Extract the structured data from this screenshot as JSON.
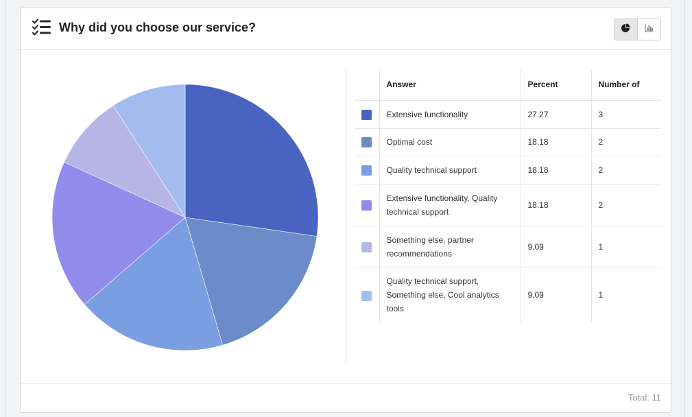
{
  "header": {
    "title": "Why did you choose our service?",
    "icon": "checklist-icon"
  },
  "view_toggle": {
    "options": [
      {
        "name": "pie-chart-icon",
        "active": true
      },
      {
        "name": "bar-chart-icon",
        "active": false
      }
    ]
  },
  "table": {
    "headers": {
      "answer": "Answer",
      "percent": "Percent",
      "number": "Number of"
    }
  },
  "footer": {
    "total": "Total: 11"
  },
  "chart_data": {
    "type": "pie",
    "title": "",
    "slices": [
      {
        "label": "Extensive functionality",
        "percent": "27.27",
        "count": "3",
        "value": 27.27,
        "color": "#4963c1"
      },
      {
        "label": "Optimal cost",
        "percent": "18.18",
        "count": "2",
        "value": 18.18,
        "color": "#6b8cc9"
      },
      {
        "label": "Quality technical support",
        "percent": "18.18",
        "count": "2",
        "value": 18.18,
        "color": "#7b9ee2"
      },
      {
        "label": "Extensive functionality, Quality technical support",
        "percent": "18.18",
        "count": "2",
        "value": 18.18,
        "color": "#918cec"
      },
      {
        "label": "Something else, partner recommendations",
        "percent": "9.09",
        "count": "1",
        "value": 9.09,
        "color": "#b6b6e6"
      },
      {
        "label": "Quality technical support, Something else, Cool analytics tools",
        "percent": "9.09",
        "count": "1",
        "value": 9.09,
        "color": "#a2bcef"
      }
    ]
  }
}
